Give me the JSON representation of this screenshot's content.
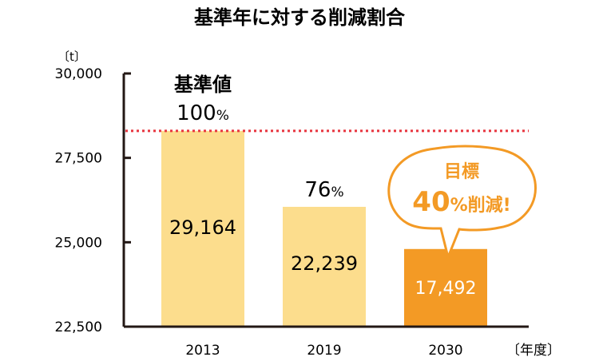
{
  "chart_data": {
    "type": "bar",
    "title": "基準年に対する削減割合",
    "ylabel": "〔t〕",
    "xlabel": "〔年度〕",
    "categories": [
      "2013",
      "2019",
      "2030"
    ],
    "values": [
      29164,
      22239,
      17492
    ],
    "value_labels": [
      "29,164",
      "22,239",
      "17,492"
    ],
    "ylim": [
      22500,
      30000
    ],
    "yticks": [
      22500,
      25000,
      27500,
      30000
    ],
    "ytick_labels": [
      "22,500",
      "25,000",
      "27,500",
      "30,000"
    ],
    "bar_colors": [
      "#fcdd8d",
      "#fcdd8d",
      "#f39a25"
    ],
    "reference_line": {
      "value": 28300,
      "color": "#e8353f",
      "style": "dotted"
    },
    "bar_top_values": [
      28300,
      26050,
      24800
    ],
    "annotations": {
      "base_label": "基準値",
      "base_percent": "100",
      "second_percent": "76",
      "percent_sign": "%",
      "bubble_top": "目標",
      "bubble_number": "40",
      "bubble_suffix": "削減!",
      "bubble_color": "#f39a25"
    },
    "grid": false
  }
}
